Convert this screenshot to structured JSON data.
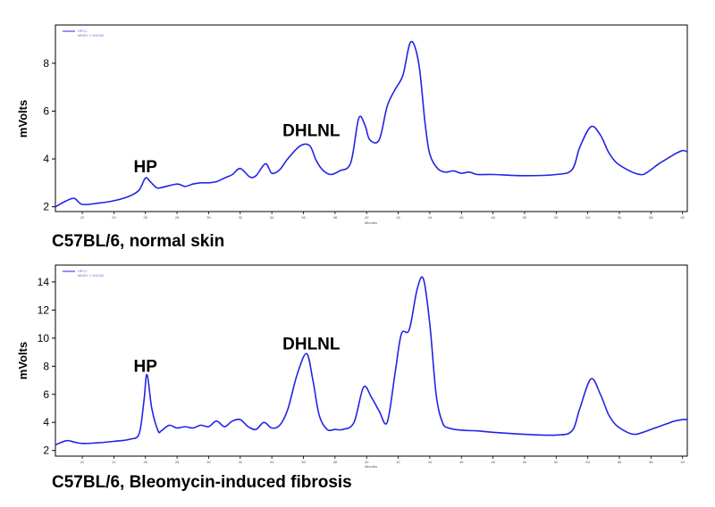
{
  "chart_data": [
    {
      "type": "line",
      "caption": "C57BL/6, normal skin",
      "ylabel": "mVolts",
      "xlabel": "Minutes",
      "ylim": [
        1.8,
        9.6
      ],
      "yticks": [
        2,
        4,
        6,
        8
      ],
      "xlim": [
        20.3,
        60.3
      ],
      "xticks": [
        22,
        24,
        26,
        28,
        30,
        32,
        34,
        36,
        38,
        40,
        42,
        44,
        46,
        48,
        50,
        52,
        54,
        56,
        58,
        60
      ],
      "legend": [
        "HPLC",
        "MMSV 1 HS138"
      ],
      "series_color": "#2323e6",
      "annotations": [
        {
          "text": "HP",
          "x": 26.0,
          "y": 3.45
        },
        {
          "text": "DHLNL",
          "x": 36.5,
          "y": 4.95
        }
      ],
      "series": [
        {
          "x": [
            20.3,
            21.0,
            21.5,
            22.0,
            23.0,
            24.0,
            25.0,
            25.6,
            26.0,
            26.3,
            26.7,
            27.0,
            28.0,
            28.5,
            29.0,
            29.5,
            30.0,
            30.5,
            31.0,
            31.5,
            32.0,
            32.6,
            33.0,
            33.6,
            34.0,
            34.5,
            35.0,
            35.8,
            36.4,
            36.8,
            37.2,
            37.7,
            38.3,
            39.0,
            39.5,
            39.9,
            40.2,
            40.8,
            41.3,
            41.8,
            42.3,
            42.8,
            43.3,
            43.7,
            44.0,
            44.5,
            45.0,
            45.5,
            46.0,
            46.5,
            47.0,
            48.0,
            50.0,
            52.0,
            53.0,
            53.5,
            54.2,
            54.8,
            55.3,
            55.8,
            56.5,
            57.0,
            57.5,
            58.0,
            58.5,
            59.0,
            59.5,
            60.0,
            60.3
          ],
          "y": [
            2.0,
            2.25,
            2.35,
            2.1,
            2.15,
            2.25,
            2.45,
            2.7,
            3.2,
            3.05,
            2.8,
            2.8,
            2.95,
            2.85,
            2.95,
            3.0,
            3.0,
            3.05,
            3.2,
            3.35,
            3.6,
            3.25,
            3.3,
            3.8,
            3.4,
            3.55,
            4.0,
            4.55,
            4.55,
            3.95,
            3.55,
            3.35,
            3.5,
            3.85,
            5.7,
            5.4,
            4.8,
            4.8,
            6.2,
            6.9,
            7.5,
            8.9,
            8.0,
            5.5,
            4.2,
            3.6,
            3.45,
            3.5,
            3.4,
            3.45,
            3.35,
            3.35,
            3.3,
            3.35,
            3.55,
            4.5,
            5.35,
            5.0,
            4.3,
            3.85,
            3.55,
            3.4,
            3.35,
            3.55,
            3.8,
            4.0,
            4.2,
            4.35,
            4.3
          ]
        }
      ]
    },
    {
      "type": "line",
      "caption": "C57BL/6, Bleomycin-induced fibrosis",
      "ylabel": "mVolts",
      "xlabel": "Minutes",
      "ylim": [
        1.6,
        15.2
      ],
      "yticks": [
        2,
        4,
        6,
        8,
        10,
        12,
        14
      ],
      "xlim": [
        20.3,
        60.3
      ],
      "xticks": [
        22,
        24,
        26,
        28,
        30,
        32,
        34,
        36,
        38,
        40,
        42,
        44,
        46,
        48,
        50,
        52,
        54,
        56,
        58,
        60
      ],
      "legend": [
        "HPLC",
        "MMSV 1 HS138"
      ],
      "series_color": "#2323e6",
      "annotations": [
        {
          "text": "HP",
          "x": 26.0,
          "y": 7.6
        },
        {
          "text": "DHLNL",
          "x": 36.5,
          "y": 9.2
        }
      ],
      "series": [
        {
          "x": [
            20.3,
            21.0,
            21.5,
            22.0,
            23.0,
            24.0,
            25.0,
            25.6,
            25.9,
            26.1,
            26.4,
            26.8,
            27.0,
            27.5,
            28.0,
            28.5,
            29.0,
            29.5,
            30.0,
            30.5,
            31.0,
            31.5,
            32.0,
            32.5,
            33.0,
            33.5,
            34.0,
            34.5,
            35.0,
            35.6,
            36.2,
            36.6,
            37.0,
            37.5,
            38.0,
            38.5,
            39.2,
            39.8,
            40.3,
            40.8,
            41.3,
            41.8,
            42.2,
            42.7,
            43.2,
            43.6,
            44.0,
            44.4,
            44.8,
            45.2,
            46.0,
            47.0,
            48.0,
            50.0,
            52.0,
            53.0,
            53.5,
            54.2,
            54.8,
            55.3,
            55.8,
            56.5,
            57.0,
            57.5,
            58.0,
            58.5,
            59.0,
            59.5,
            60.0,
            60.3
          ],
          "y": [
            2.4,
            2.7,
            2.6,
            2.5,
            2.55,
            2.65,
            2.8,
            3.2,
            5.5,
            7.4,
            5.0,
            3.4,
            3.4,
            3.8,
            3.6,
            3.7,
            3.6,
            3.8,
            3.7,
            4.1,
            3.7,
            4.1,
            4.2,
            3.7,
            3.5,
            4.0,
            3.6,
            3.8,
            4.9,
            7.4,
            8.9,
            7.0,
            4.5,
            3.5,
            3.5,
            3.5,
            4.0,
            6.5,
            5.8,
            4.8,
            4.0,
            7.5,
            10.3,
            10.6,
            13.5,
            14.2,
            11.0,
            6.0,
            4.0,
            3.6,
            3.45,
            3.4,
            3.3,
            3.15,
            3.1,
            3.4,
            5.0,
            7.1,
            6.0,
            4.6,
            3.8,
            3.3,
            3.15,
            3.3,
            3.5,
            3.7,
            3.9,
            4.1,
            4.2,
            4.2
          ]
        }
      ]
    }
  ],
  "panels_meta": {
    "plot_width_units": "minutes"
  }
}
